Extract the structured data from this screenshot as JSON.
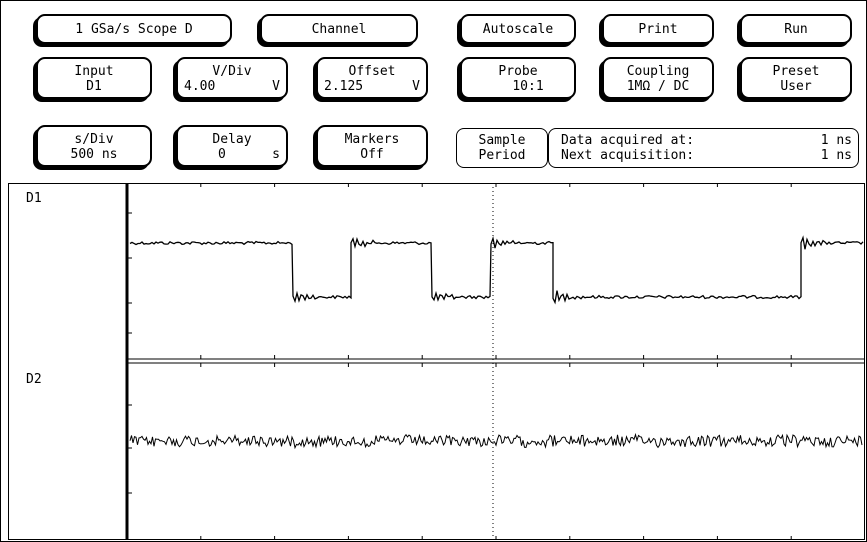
{
  "top": {
    "scope": "1 GSa/s Scope D",
    "channel": "Channel",
    "autoscale": "Autoscale",
    "print": "Print",
    "run": "Run"
  },
  "row2": {
    "input": {
      "label": "Input",
      "value": "D1"
    },
    "vdiv": {
      "label": "V/Div",
      "value": "4.00",
      "unit": "V"
    },
    "offset": {
      "label": "Offset",
      "value": "2.125",
      "unit": "V"
    },
    "probe": {
      "label": "Probe",
      "value": "10:1"
    },
    "coupling": {
      "label": "Coupling",
      "value": "1MΩ / DC"
    },
    "preset": {
      "label": "Preset",
      "value": "User"
    }
  },
  "row3": {
    "sdiv": {
      "label": "s/Div",
      "value": "500 ns"
    },
    "delay": {
      "label": "Delay",
      "value": "0",
      "unit": "s"
    },
    "markers": {
      "label": "Markers",
      "value": "Off"
    },
    "sample": {
      "label": "Sample",
      "value": "Period"
    },
    "info": {
      "acq_label": "Data acquired at:",
      "acq_value": "1 ns",
      "next_label": "Next acquisition:",
      "next_value": "1 ns"
    }
  },
  "channels": {
    "d1": "D1",
    "d2": "D2"
  }
}
